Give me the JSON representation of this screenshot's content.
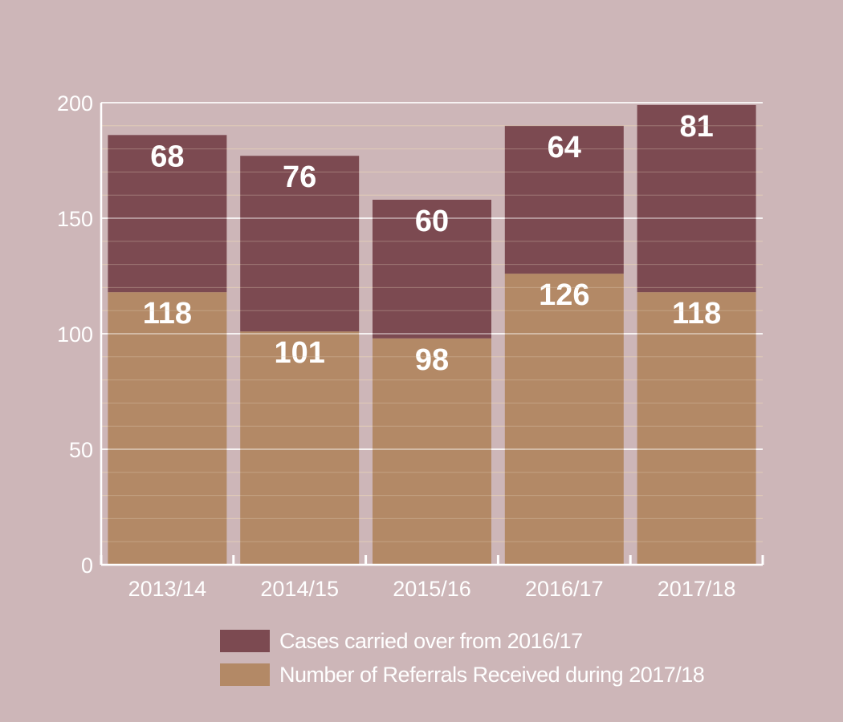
{
  "chart_data": {
    "type": "bar",
    "stacked": true,
    "categories": [
      "2013/14",
      "2014/15",
      "2015/16",
      "2016/17",
      "2017/18"
    ],
    "series": [
      {
        "name": "Number of Referrals Received during 2017/18",
        "values": [
          118,
          101,
          98,
          126,
          118
        ],
        "color": "#b38966"
      },
      {
        "name": "Cases carried over from 2016/17",
        "values": [
          68,
          76,
          60,
          64,
          81
        ],
        "color": "#7c4a51"
      }
    ],
    "title": "",
    "xlabel": "",
    "ylabel": "",
    "ylim": [
      0,
      200
    ],
    "yticks": [
      "0",
      "50",
      "100",
      "150",
      "200"
    ],
    "grid": true,
    "legend_position": "bottom",
    "colors": {
      "background": "#cdb6b8",
      "axis": "#ffffff",
      "gridline": "#e3cdb6"
    }
  }
}
